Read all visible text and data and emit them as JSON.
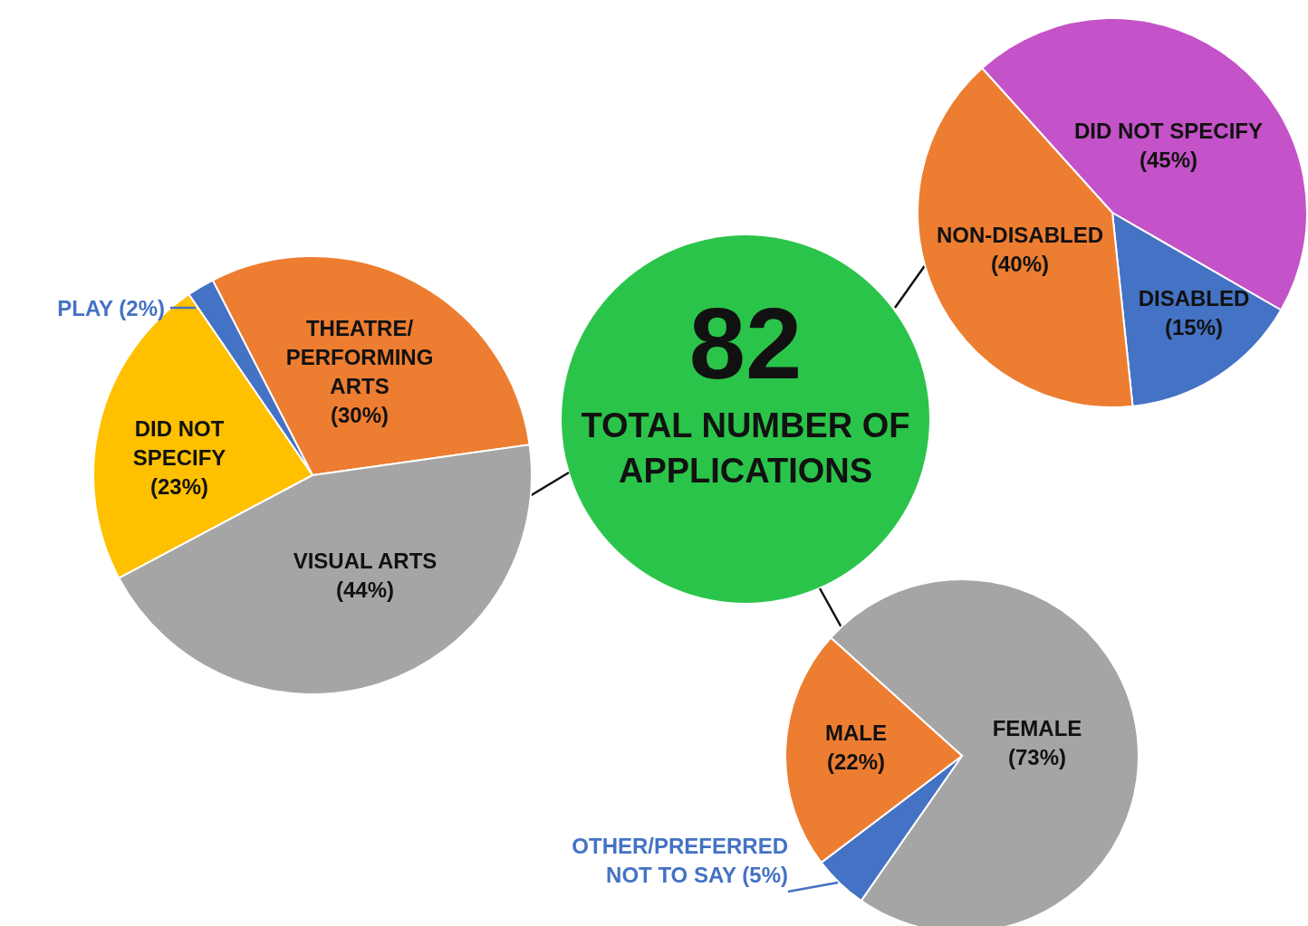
{
  "chart_data": [
    {
      "type": "pie",
      "categories": [
        "THEATRE/ PERFORMING ARTS",
        "PLAY",
        "DID NOT SPECIFY",
        "VISUAL ARTS"
      ],
      "values": [
        30,
        2,
        23,
        44
      ],
      "value_labels": [
        "(30%)",
        "(2%)",
        "(23%)",
        "(44%)"
      ],
      "colors": [
        "#ed7d31",
        "#4472c4",
        "#ffc000",
        "#a5a5a5"
      ]
    },
    {
      "type": "other",
      "title": "82",
      "subtitle": "TOTAL NUMBER OF APPLICATIONS"
    },
    {
      "type": "pie",
      "categories": [
        "DID NOT SPECIFY",
        "DISABLED",
        "NON-DISABLED"
      ],
      "values": [
        45,
        15,
        40
      ],
      "value_labels": [
        "(45%)",
        "(15%)",
        "(40%)"
      ],
      "colors": [
        "#c452c8",
        "#4472c4",
        "#ed7d31"
      ]
    },
    {
      "type": "pie",
      "categories": [
        "FEMALE",
        "OTHER/PREFERRED NOT TO SAY",
        "MALE"
      ],
      "values": [
        73,
        5,
        22
      ],
      "value_labels": [
        "(73%)",
        "(5%)",
        "(22%)"
      ],
      "colors": [
        "#a5a5a5",
        "#4472c4",
        "#ed7d31"
      ]
    }
  ]
}
